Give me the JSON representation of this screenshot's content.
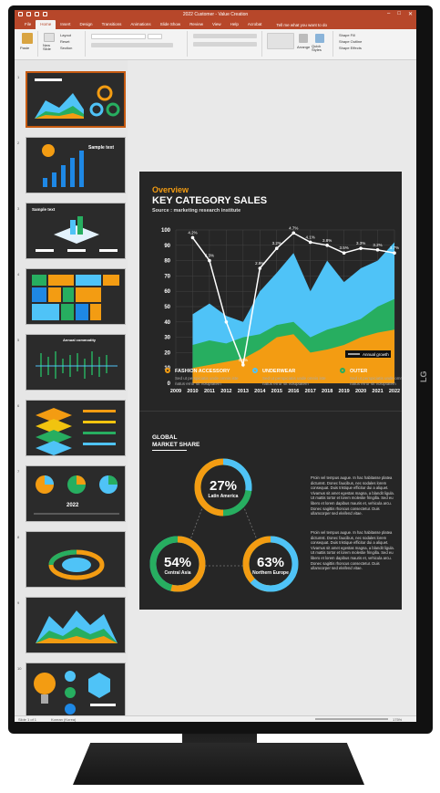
{
  "window": {
    "title": "2022 Customer - Value Creation",
    "brand": "LG"
  },
  "ribbon": {
    "tabs": [
      "File",
      "Home",
      "Insert",
      "Design",
      "Transitions",
      "Animations",
      "Slide Show",
      "Review",
      "View",
      "Help",
      "Acrobat"
    ],
    "active_tab": "Home",
    "tell_me": "Tell me what you want to do",
    "paste_label": "Paste",
    "new_slide_label": "New Slide",
    "layout_label": "Layout",
    "reset_label": "Reset",
    "section_label": "Section",
    "arrange_label": "Arrange",
    "quick_styles_label": "Quick Styles",
    "shape_fill_label": "Shape Fill",
    "shape_outline_label": "Shape Outline",
    "shape_effects_label": "Shape Effects"
  },
  "slide": {
    "overview": "Overview",
    "title": "KEY CATEGORY SALES",
    "source": "Source : marketing research institute",
    "legend_inline": "Annual growth",
    "legends": [
      {
        "name": "FASHION ACCESSORY",
        "color": "#f39c12",
        "desc": "Sed ut perspiciatis unde omnis iste natus error sit voluptatem"
      },
      {
        "name": "UNDERWEAR",
        "color": "#4fc3f7",
        "desc": "Sed ut perspiciatis unde omnis iste natus error sit voluptatem"
      },
      {
        "name": "OUTER",
        "color": "#27ae60",
        "desc": "Sed ut perspiciatis unde omnis iste natus error sit voluptatem"
      }
    ],
    "market_share_title_1": "GLOBAL",
    "market_share_title_2": "MARKET SHARE",
    "donuts": [
      {
        "value": "27%",
        "label": "Latin America",
        "fraction": 0.27
      },
      {
        "value": "54%",
        "label": "Central Asia",
        "fraction": 0.54
      },
      {
        "value": "63%",
        "label": "Northern Europe",
        "fraction": 0.63
      }
    ],
    "paragraph_1": "Proin vel tempus augue. In hac habitasse platea dictumst. Donec faucibus, nec sodales lorem consequat. Duis tristique efficitur dui a aliquet. Vivamus sit amet egestas magna, a blandit ligula. Ut mattis tortor et lorem molestie fringilla. Sed eu libero et lorem dapibus mauris et, vehicula arcu. Donec sagittis rhoncus consectetur. Duis ullamcorper sed eleifend vitae.",
    "paragraph_2": "Proin vel tempus augue. In hac habitasse platea dictumst. Donec faucibus, nec sodales lorem consequat. Duis tristique efficitur dui a aliquet. Vivamus sit amet egestas magna, a blandit ligula. Ut mattis tortor et lorem molestie fringilla. Sed eu libero et lorem dapibus mauris et, vehicula arcu. Donec sagittis rhoncus consectetur. Duis ullamcorper sed eleifend vitae."
  },
  "thumbnails": [
    {
      "num": "1"
    },
    {
      "num": "2",
      "text": "Sample text"
    },
    {
      "num": "3",
      "text": "Sample text"
    },
    {
      "num": "4"
    },
    {
      "num": "5",
      "text": "Annual commodity"
    },
    {
      "num": "6"
    },
    {
      "num": "7",
      "text": "2022"
    },
    {
      "num": "8"
    },
    {
      "num": "9"
    },
    {
      "num": "10"
    }
  ],
  "status": {
    "slide_info": "Slide 1 of 1",
    "language": "Korean (Korea)",
    "zoom": "175%"
  },
  "chart_data": {
    "type": "area",
    "x": [
      "2009",
      "2010",
      "2011",
      "2012",
      "2013",
      "2014",
      "2015",
      "2016",
      "2017",
      "2018",
      "2019",
      "2020",
      "2021",
      "2022"
    ],
    "ylim": [
      0,
      100
    ],
    "yticks": [
      0,
      10,
      20,
      30,
      40,
      50,
      60,
      70,
      80,
      90,
      100
    ],
    "series": [
      {
        "name": "UNDERWEAR",
        "color": "#4fc3f7",
        "values": [
          null,
          45,
          52,
          44,
          40,
          60,
          72,
          85,
          60,
          80,
          66,
          75,
          80,
          92
        ]
      },
      {
        "name": "OUTER",
        "color": "#27ae60",
        "values": [
          null,
          25,
          28,
          26,
          30,
          32,
          38,
          40,
          30,
          35,
          38,
          42,
          50,
          55
        ]
      },
      {
        "name": "FASHION ACCESSORY",
        "color": "#f39c12",
        "values": [
          null,
          10,
          12,
          14,
          16,
          22,
          30,
          32,
          20,
          22,
          25,
          30,
          33,
          35
        ]
      },
      {
        "name": "Annual growth",
        "color": "#ffffff",
        "values": [
          null,
          95,
          80,
          40,
          12,
          75,
          88,
          98,
          92,
          90,
          85,
          88,
          87,
          85
        ]
      }
    ],
    "data_labels": [
      "4.2%",
      "3.3%",
      "",
      "0.7%",
      "2.9%",
      "3.2%",
      "4.7%",
      "4.1%",
      "3.8%",
      "3.5%",
      "3.3%",
      "3.2%",
      "3.7%"
    ]
  }
}
